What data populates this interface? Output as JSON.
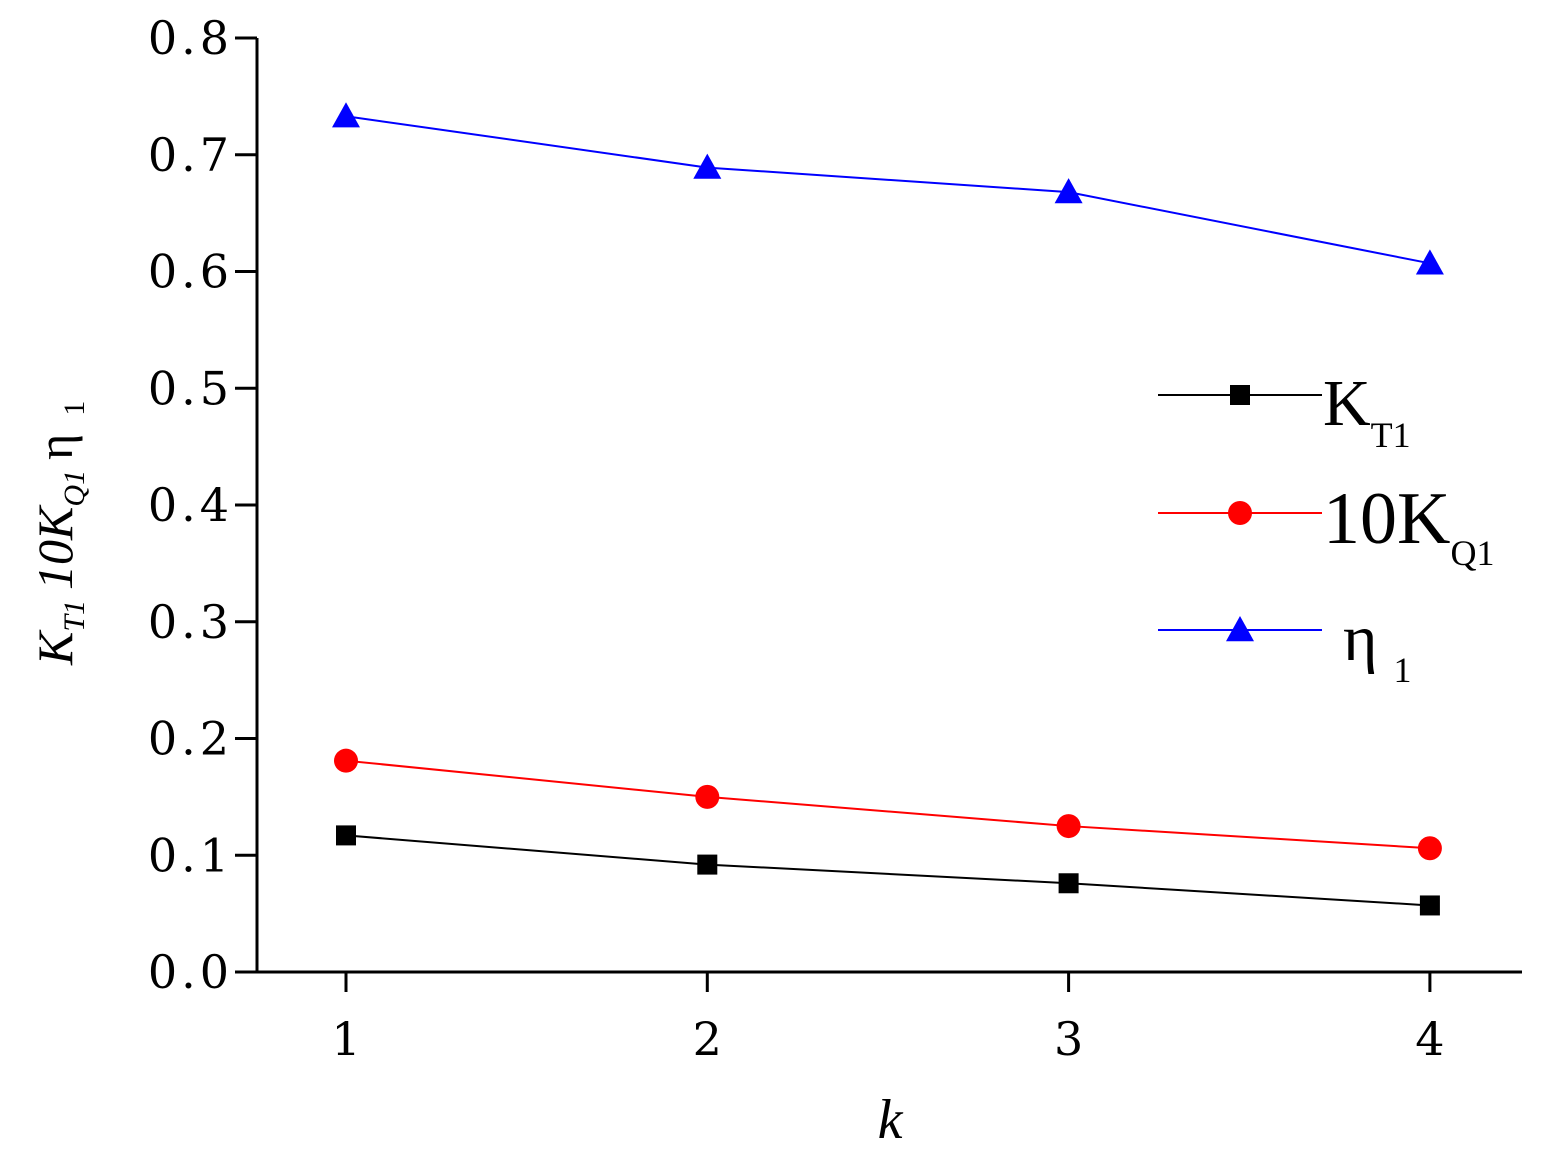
{
  "chart_data": {
    "type": "line",
    "x": [
      1,
      2,
      3,
      4
    ],
    "xlabel": "k",
    "ylabel": {
      "parts": [
        {
          "text": "K",
          "sub": "T1"
        },
        {
          "text": "10K",
          "sub": "Q1"
        },
        {
          "text": "η",
          "sub": "1"
        }
      ]
    },
    "ylim": [
      0.0,
      0.8
    ],
    "yticks": [
      "0.0",
      "0.1",
      "0.2",
      "0.3",
      "0.4",
      "0.5",
      "0.6",
      "0.7",
      "0.8"
    ],
    "xticks": [
      "1",
      "2",
      "3",
      "4"
    ],
    "grid": false,
    "legend_position": "right",
    "series": [
      {
        "name": "K",
        "name_sub": "T1",
        "marker": "square",
        "color": "#000000",
        "values": [
          0.117,
          0.092,
          0.076,
          0.057
        ]
      },
      {
        "name": "10K",
        "name_sub": "Q1",
        "marker": "circle",
        "color": "#ff0000",
        "values": [
          0.181,
          0.15,
          0.125,
          0.106
        ]
      },
      {
        "name": "η",
        "name_sub": "1",
        "marker": "triangle",
        "color": "#0000ff",
        "values": [
          0.733,
          0.689,
          0.668,
          0.607
        ]
      }
    ]
  }
}
